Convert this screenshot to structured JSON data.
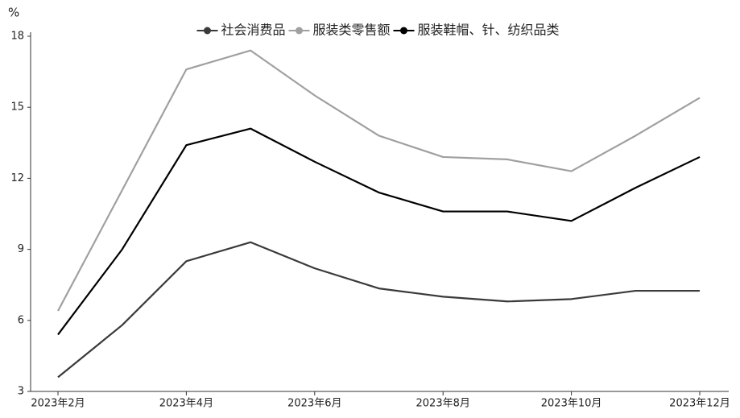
{
  "chart_data": {
    "type": "line",
    "y_label": "%",
    "categories": [
      "2023年2月",
      null,
      "2023年4月",
      null,
      "2023年6月",
      null,
      "2023年8月",
      null,
      "2023年10月",
      null,
      "2023年12月"
    ],
    "series": [
      {
        "name": "社会消费品",
        "color": "#3a3a3a",
        "values": [
          3.6,
          5.8,
          8.5,
          9.3,
          8.2,
          7.35,
          7.0,
          6.8,
          6.9,
          7.25,
          7.25
        ]
      },
      {
        "name": "服装类零售额",
        "color": "#a0a0a0",
        "values": [
          6.4,
          11.5,
          16.6,
          17.4,
          15.5,
          13.8,
          12.9,
          12.8,
          12.3,
          13.8,
          15.4
        ]
      },
      {
        "name": "服装鞋帽、针、纺织品类",
        "color": "#000000",
        "values": [
          5.4,
          9.0,
          13.4,
          14.1,
          12.7,
          11.4,
          10.6,
          10.6,
          10.2,
          11.6,
          12.9
        ]
      }
    ],
    "ylim": [
      3,
      18
    ],
    "yticks": [
      3,
      6,
      9,
      12,
      15,
      18
    ],
    "grid": false,
    "legend": "top"
  }
}
